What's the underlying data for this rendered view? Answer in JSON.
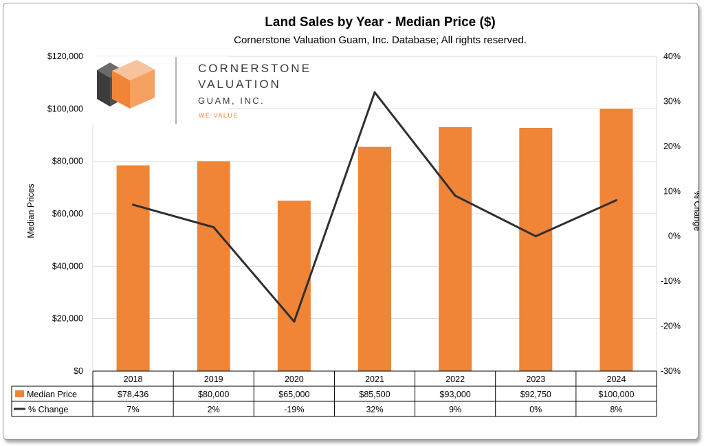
{
  "chart_data": {
    "type": "bar",
    "title": "Land Sales by Year - Median Price ($)",
    "subtitle": "Cornerstone Valuation Guam, Inc. Database; All rights reserved.",
    "categories": [
      "2018",
      "2019",
      "2020",
      "2021",
      "2022",
      "2023",
      "2024"
    ],
    "series": [
      {
        "name": "Median Price",
        "type": "bar",
        "axis": "left",
        "color": "#F08437",
        "values": [
          78436,
          80000,
          65000,
          85500,
          93000,
          92750,
          100000
        ],
        "labels": [
          "$78,436",
          "$80,000",
          "$65,000",
          "$85,500",
          "$93,000",
          "$92,750",
          "$100,000"
        ]
      },
      {
        "name": "% Change",
        "type": "line",
        "axis": "right",
        "color": "#2F2F2F",
        "values": [
          7,
          2,
          -19,
          32,
          9,
          0,
          8
        ],
        "labels": [
          "7%",
          "2%",
          "-19%",
          "32%",
          "9%",
          "0%",
          "8%"
        ]
      }
    ],
    "y_left": {
      "label": "Median Prices",
      "min": 0,
      "max": 120000,
      "step": 20000,
      "ticks": [
        "$0",
        "$20,000",
        "$40,000",
        "$60,000",
        "$80,000",
        "$100,000",
        "$120,000"
      ]
    },
    "y_right": {
      "label": "% Change",
      "min": -30,
      "max": 40,
      "step": 10,
      "ticks": [
        "-30%",
        "-20%",
        "-10%",
        "0%",
        "10%",
        "20%",
        "30%",
        "40%"
      ]
    },
    "grid": true,
    "legend": "data-table"
  },
  "logo": {
    "line1": "CORNERSTONE",
    "line2": "VALUATION",
    "line3": "GUAM, INC.",
    "tagline": "WE VALUE"
  }
}
